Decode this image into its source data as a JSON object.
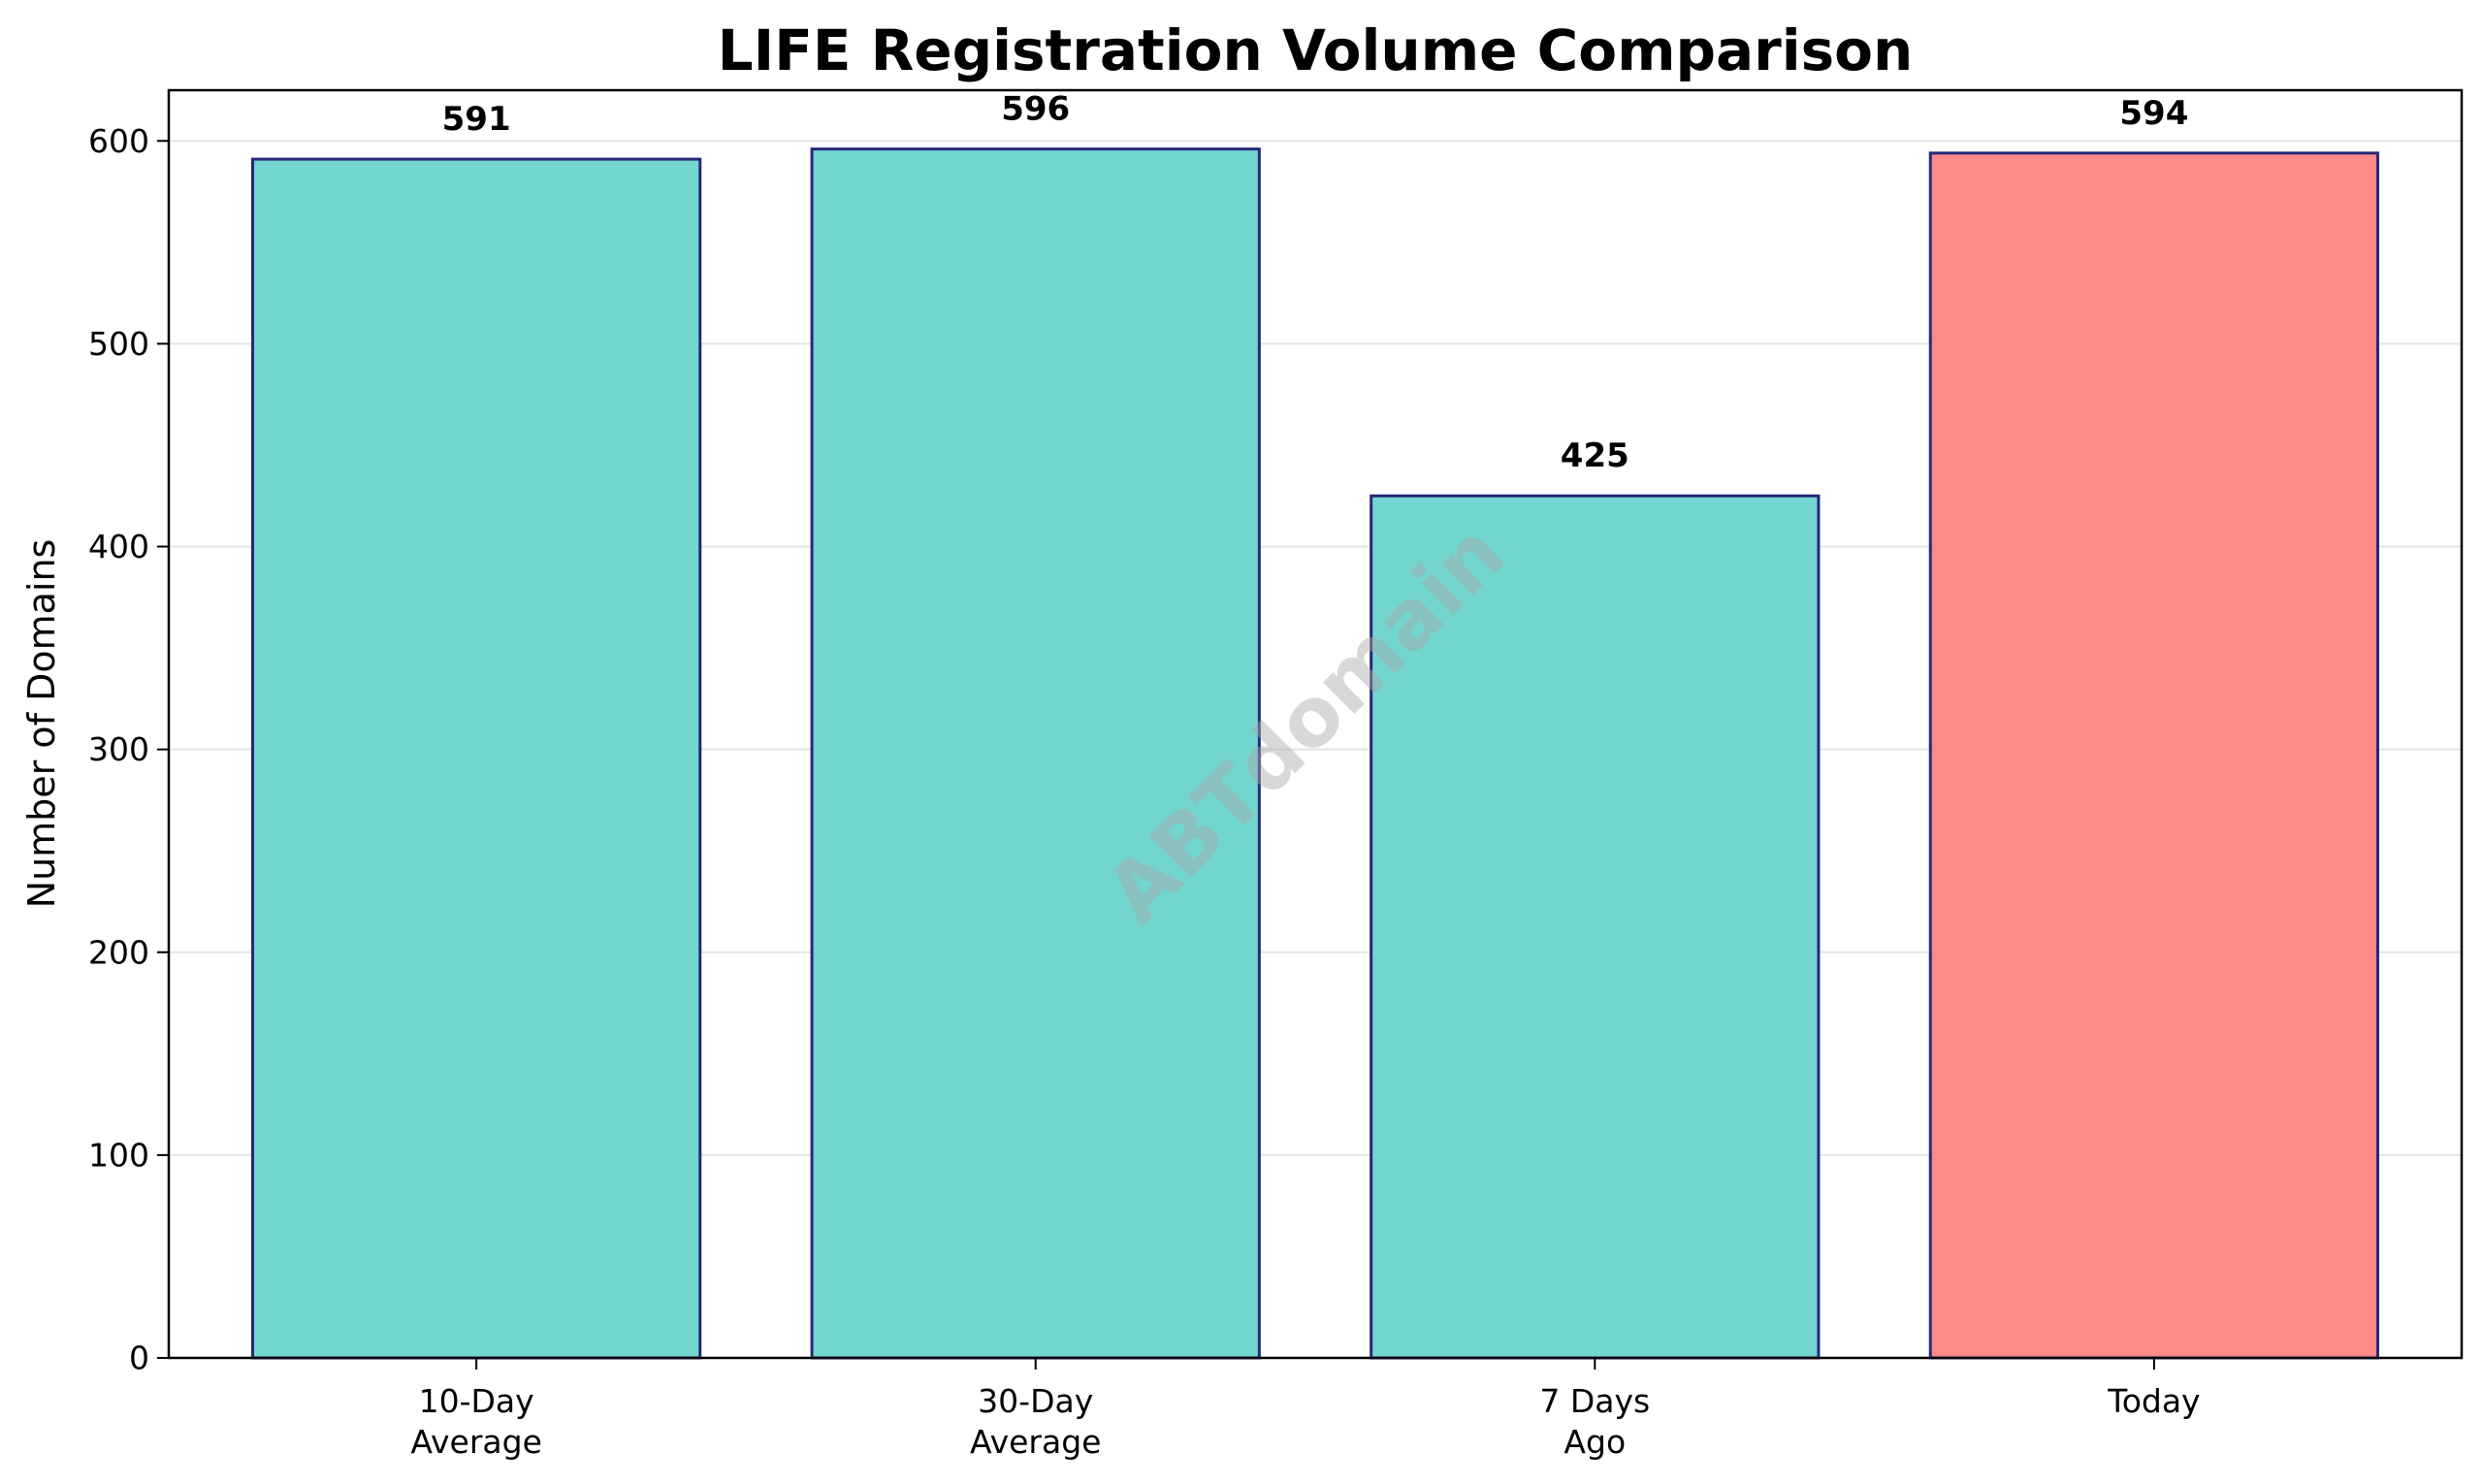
{
  "chart_data": {
    "type": "bar",
    "title": "LIFE Registration Volume Comparison",
    "xlabel": "",
    "ylabel": "Number of Domains",
    "categories": [
      [
        "10-Day",
        "Average"
      ],
      [
        "30-Day",
        "Average"
      ],
      [
        "7 Days",
        "Ago"
      ],
      [
        "Today"
      ]
    ],
    "values": [
      591,
      596,
      425,
      594
    ],
    "value_labels": [
      "591",
      "596",
      "425",
      "594"
    ],
    "bar_colors": [
      "#72d6cf",
      "#72d6cf",
      "#72d6cf",
      "#fe8a89"
    ],
    "edge_color": "#27287a",
    "ylim": [
      0,
      625
    ],
    "yticks": [
      0,
      100,
      200,
      300,
      400,
      500,
      600
    ],
    "ytick_labels": [
      "0",
      "100",
      "200",
      "300",
      "400",
      "500",
      "600"
    ],
    "grid": "y",
    "legend": "none"
  },
  "watermark": "ABTdomain"
}
